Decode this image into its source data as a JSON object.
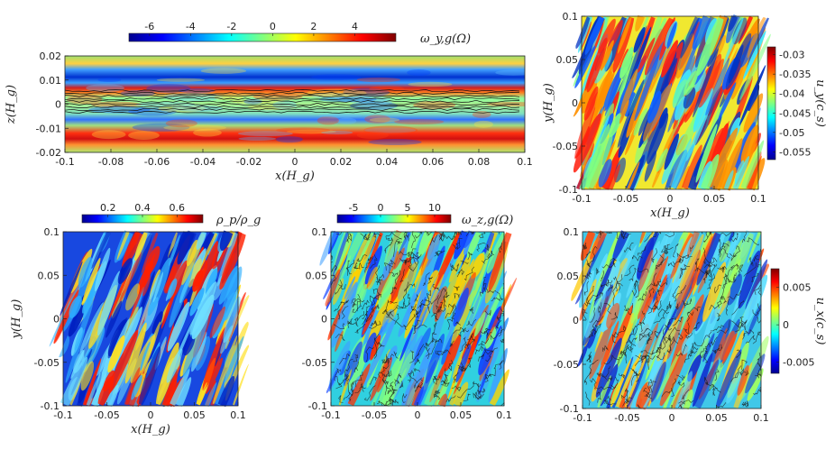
{
  "chart_data": [
    {
      "id": "p1",
      "type": "heatmap",
      "title": "",
      "xlabel": "x(H_g)",
      "ylabel": "z(H_g)",
      "xlim": [
        -0.1,
        0.1
      ],
      "ylim": [
        -0.02,
        0.02
      ],
      "xticks": [
        "-0.1",
        "-0.08",
        "-0.06",
        "-0.04",
        "-0.02",
        "0",
        "0.02",
        "0.04",
        "0.06",
        "0.08",
        "0.1"
      ],
      "yticks": [
        "-0.02",
        "-0.01",
        "0",
        "0.01",
        "0.02"
      ],
      "colorbar": {
        "label": "ω_y,g(Ω)",
        "orientation": "horizontal",
        "range": [
          -7,
          6
        ],
        "ticks": [
          "-6",
          "-4",
          "-2",
          "0",
          "2",
          "4"
        ]
      },
      "contours": true,
      "description_profile": "negative band near z=+0.012, positive band near z=+0.006 and z=-0.012, near-zero midplane"
    },
    {
      "id": "p2",
      "type": "heatmap",
      "xlabel": "x(H_g)",
      "ylabel": "y(H_g)",
      "xlim": [
        -0.1,
        0.1
      ],
      "ylim": [
        -0.1,
        0.1
      ],
      "xticks": [
        "-0.1",
        "-0.05",
        "0",
        "0.05",
        "0.1"
      ],
      "yticks": [
        "-0.1",
        "-0.05",
        "0",
        "0.05",
        "0.1"
      ],
      "colorbar": {
        "label": "u_y(c_s)",
        "orientation": "vertical",
        "range": [
          -0.057,
          -0.028
        ],
        "ticks": [
          "-0.03",
          "-0.035",
          "-0.04",
          "-0.045",
          "-0.05",
          "-0.055"
        ]
      },
      "contours": false
    },
    {
      "id": "p3",
      "type": "heatmap",
      "xlabel": "x(H_g)",
      "ylabel": "y(H_g)",
      "xlim": [
        -0.1,
        0.1
      ],
      "ylim": [
        -0.1,
        0.1
      ],
      "xticks": [
        "-0.1",
        "-0.05",
        "0",
        "0.05",
        "0.1"
      ],
      "yticks": [
        "-0.1",
        "-0.05",
        "0",
        "0.05",
        "0.1"
      ],
      "colorbar": {
        "label": "ρ_p/ρ_g",
        "orientation": "horizontal",
        "range": [
          0.05,
          0.75
        ],
        "ticks": [
          "0.2",
          "0.4",
          "0.6"
        ]
      },
      "contours": false
    },
    {
      "id": "p4",
      "type": "heatmap",
      "xlabel": "",
      "ylabel": "",
      "xlim": [
        -0.1,
        0.1
      ],
      "ylim": [
        -0.1,
        0.1
      ],
      "xticks": [
        "-0.1",
        "-0.05",
        "0",
        "0.05",
        "0.1"
      ],
      "yticks": [
        "-0.1",
        "-0.05",
        "0",
        "0.05",
        "0.1"
      ],
      "colorbar": {
        "label": "ω_z,g(Ω)",
        "orientation": "horizontal",
        "range": [
          -8,
          13
        ],
        "ticks": [
          "-5",
          "0",
          "5",
          "10"
        ]
      },
      "contours": true
    },
    {
      "id": "p5",
      "type": "heatmap",
      "xlabel": "",
      "ylabel": "",
      "xlim": [
        -0.1,
        0.1
      ],
      "ylim": [
        -0.1,
        0.1
      ],
      "xticks": [
        "-0.1",
        "-0.05",
        "0",
        "0.05",
        "0.1"
      ],
      "yticks": [
        "-0.1",
        "-0.05",
        "0",
        "0.05",
        "0.1"
      ],
      "colorbar": {
        "label": "u_x(c_s)",
        "orientation": "vertical",
        "range": [
          -0.0065,
          0.0075
        ],
        "ticks": [
          "0.005",
          "0",
          "-0.005"
        ]
      },
      "contours": true
    }
  ]
}
